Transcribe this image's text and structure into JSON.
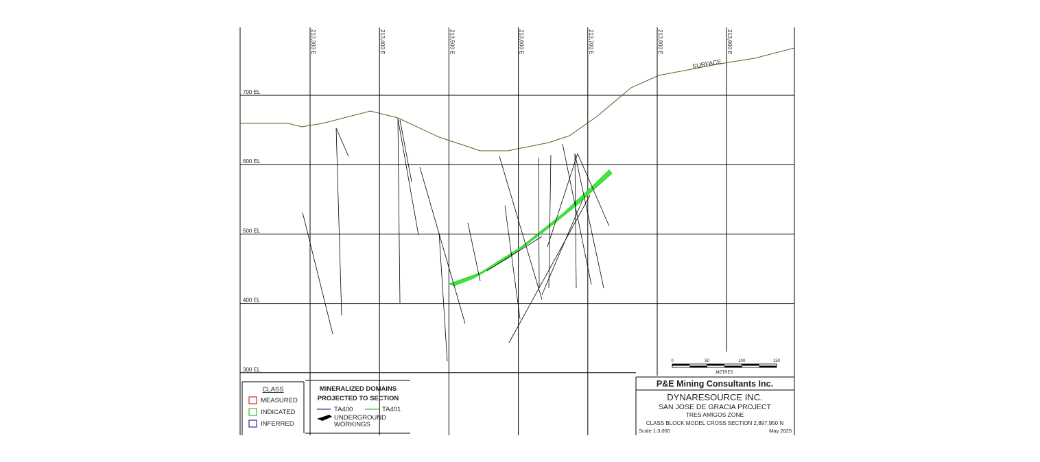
{
  "axes": {
    "eastings": [
      "213,300 E",
      "213,400 E",
      "213,500 E",
      "213,600 E",
      "213,700 E",
      "213,800 E",
      "213,900 E"
    ],
    "elevations": [
      "700 EL",
      "600 EL",
      "500 EL",
      "400 EL",
      "300 EL"
    ]
  },
  "surface_label": "SURFACE",
  "legend": {
    "class": {
      "title": "CLASS",
      "items": [
        "MEASURED",
        "INDICATED",
        "INFERRED"
      ]
    },
    "domains": {
      "title_lines": [
        "MINERALIZED DOMAINS",
        "PROJECTED TO SECTION"
      ],
      "items": [
        "TA400",
        "TA401"
      ],
      "workings_lines": [
        "UNDERGROUND",
        "WORKINGS"
      ]
    }
  },
  "scale_bar": {
    "ticks": [
      0,
      50,
      100,
      150
    ],
    "unit": "METRES"
  },
  "title_block": {
    "company": "P&E Mining Consultants Inc.",
    "client": "DYNARESOURCE INC.",
    "project": "SAN JOSE DE GRACIA PROJECT",
    "zone": "TRES AMIGOS ZONE",
    "description": "CLASS BLOCK MODEL CROSS SECTION 2,897,950 N",
    "scale": "Scale 1:3,000",
    "date": "May 2025"
  }
}
